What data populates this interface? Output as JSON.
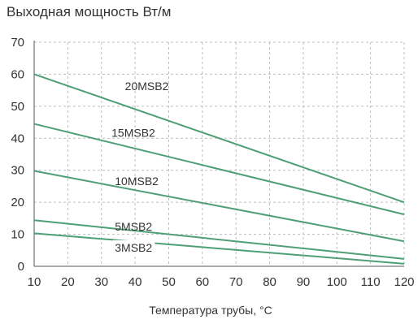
{
  "chart_data": {
    "type": "line",
    "title": "Выходная мощность Вт/м",
    "xlabel": "Температура трубы, °C",
    "ylabel": "",
    "xlim": [
      10,
      120
    ],
    "ylim": [
      0,
      70
    ],
    "xticks": [
      "10",
      "20",
      "30",
      "40",
      "50",
      "60",
      "70",
      "80",
      "90",
      "100",
      "110",
      "120"
    ],
    "yticks": [
      "0",
      "10",
      "20",
      "30",
      "40",
      "50",
      "60",
      "70"
    ],
    "grid": true,
    "legend": "inline-labels",
    "line_color": "#4e9e76",
    "series": [
      {
        "name": "20MSB2",
        "x": [
          10,
          120
        ],
        "y": [
          60,
          20
        ]
      },
      {
        "name": "15MSB2",
        "x": [
          10,
          120
        ],
        "y": [
          44.5,
          16.2
        ]
      },
      {
        "name": "10MSB2",
        "x": [
          10,
          120
        ],
        "y": [
          29.8,
          7.8
        ]
      },
      {
        "name": "5MSB2",
        "x": [
          10,
          120
        ],
        "y": [
          14.4,
          2.3
        ]
      },
      {
        "name": "3MSB2",
        "x": [
          10,
          120
        ],
        "y": [
          10.3,
          0.8
        ]
      }
    ]
  }
}
